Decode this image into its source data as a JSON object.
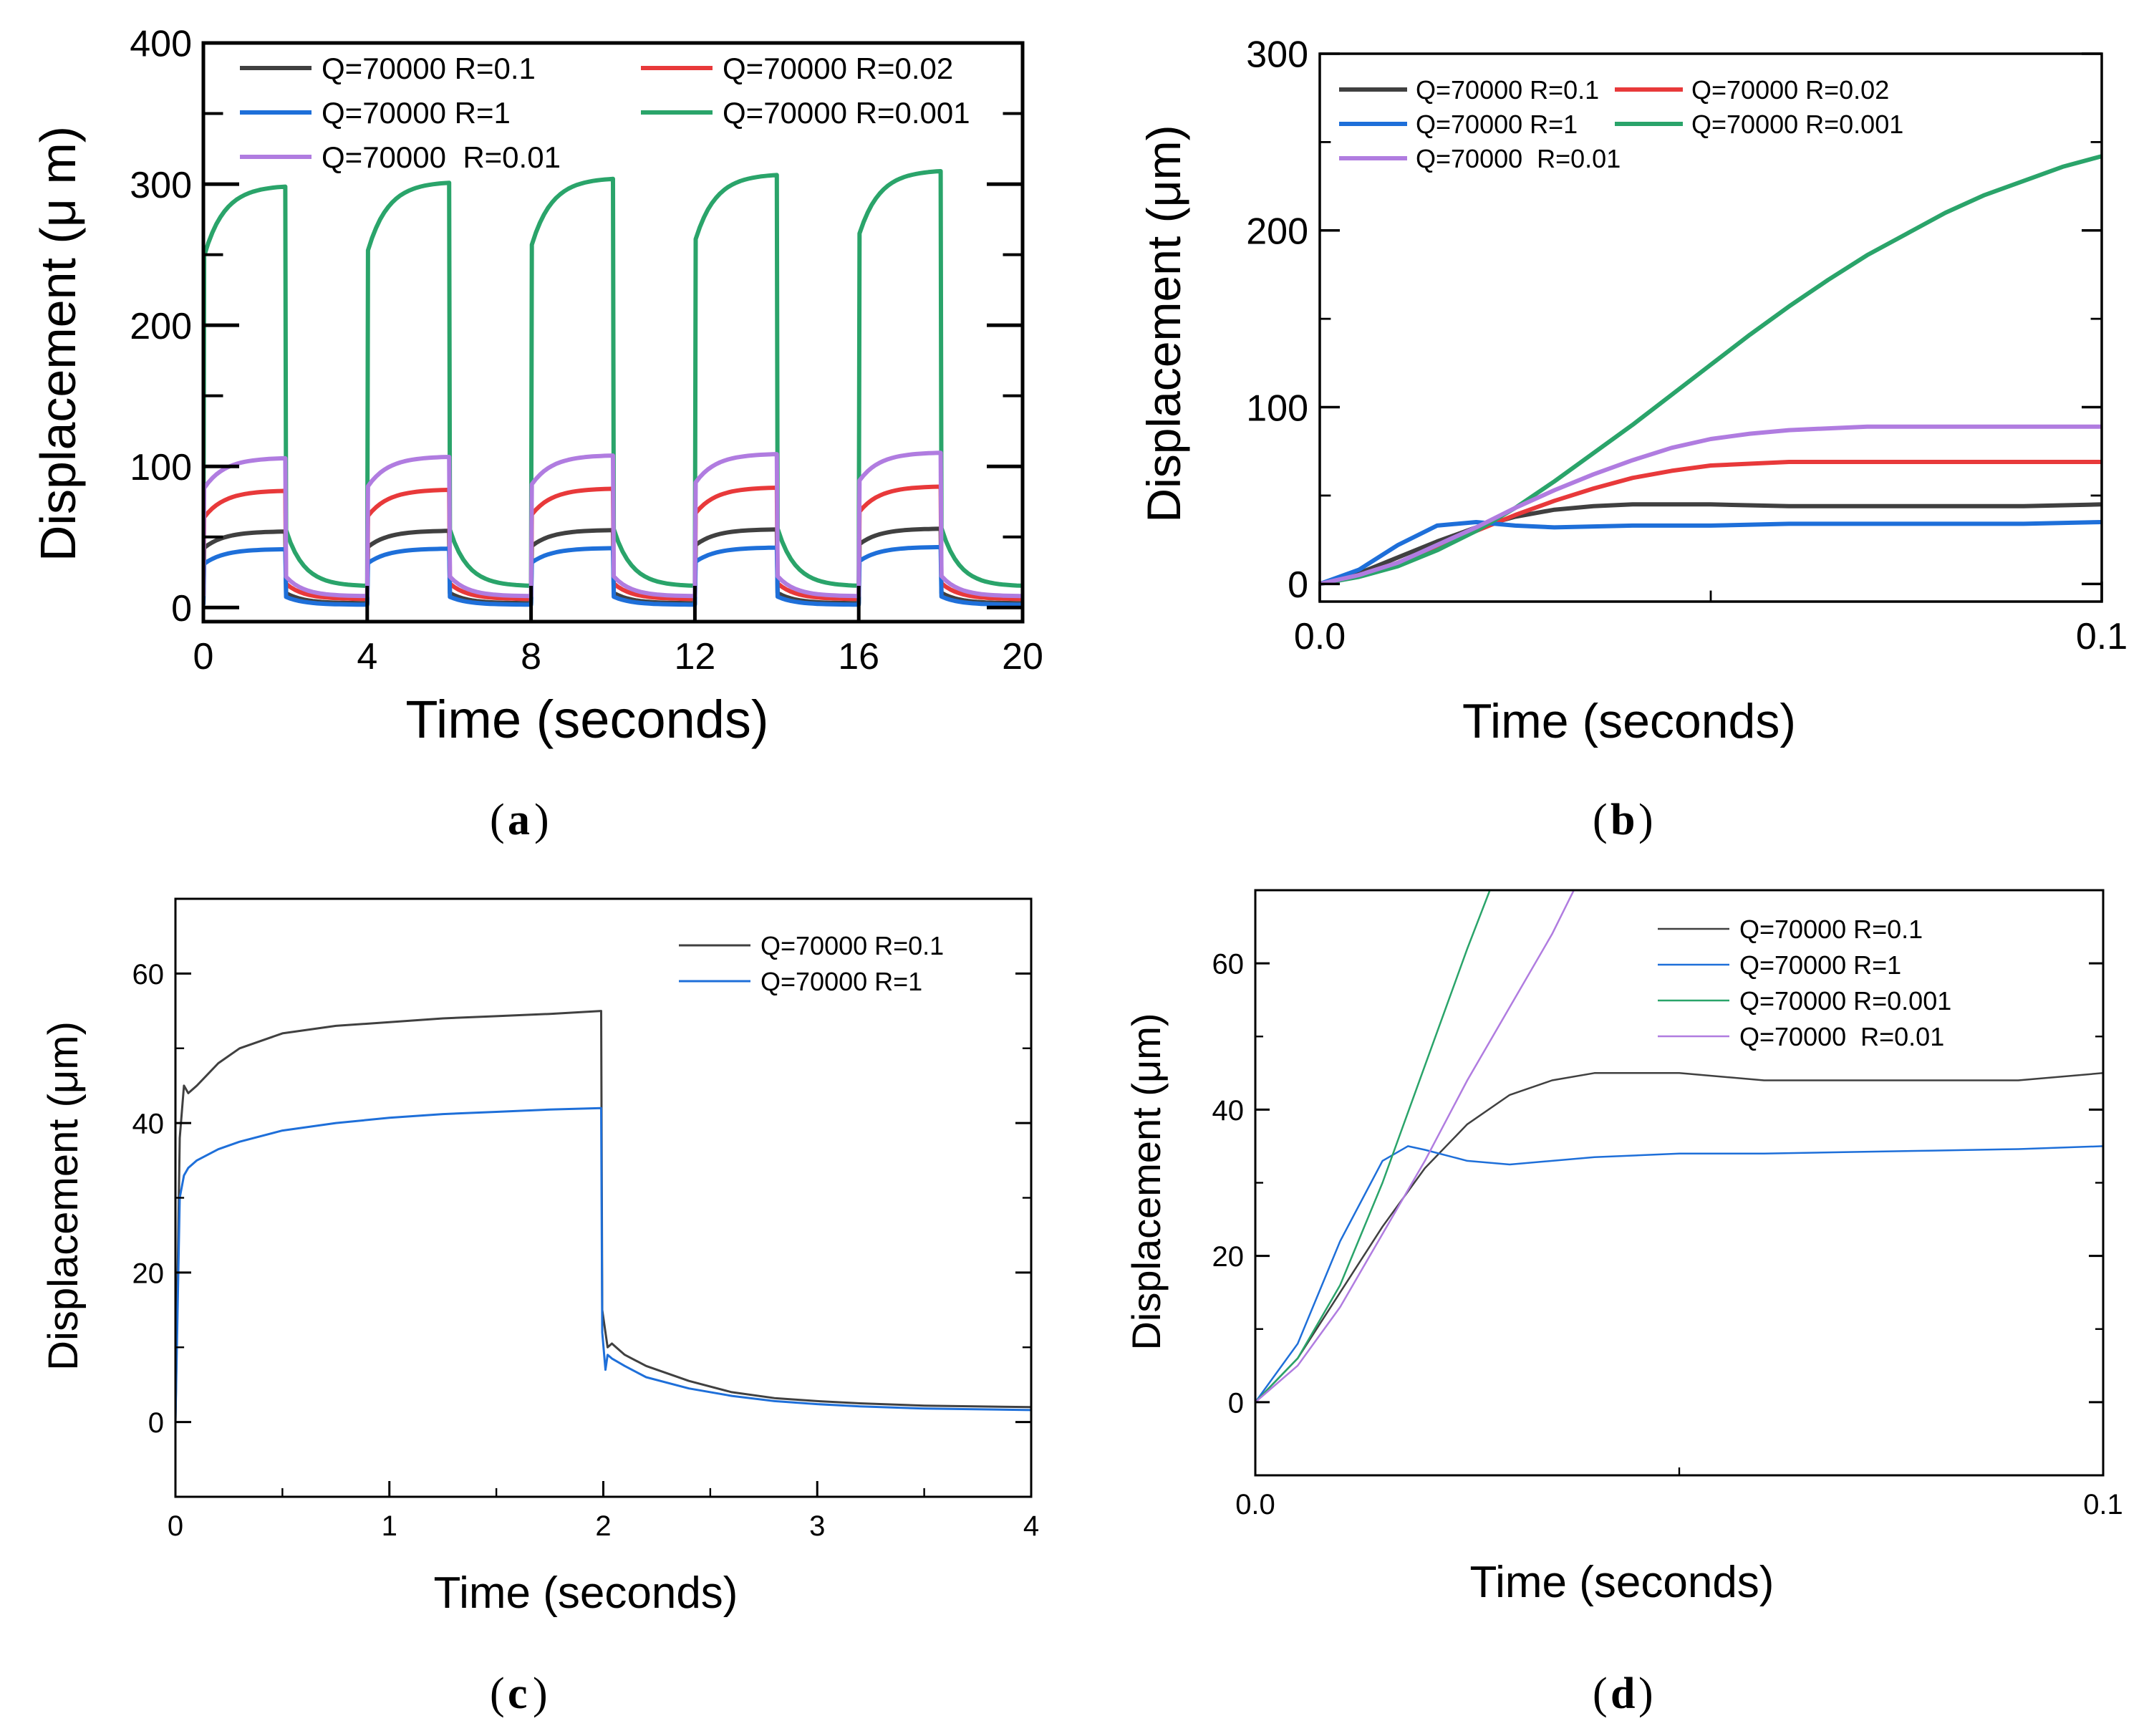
{
  "chart_data": [
    {
      "id": "a",
      "type": "line",
      "caption_letter": "a",
      "xlabel": "Time (seconds)",
      "ylabel": "Displacement (μ m)",
      "xlim": [
        0,
        20
      ],
      "ylim": [
        -10,
        400
      ],
      "xticks": [
        0,
        4,
        8,
        12,
        16,
        20
      ],
      "yticks": [
        0,
        100,
        200,
        300,
        400
      ],
      "legend_rows": [
        [
          "s0",
          "s1"
        ],
        [
          "s2",
          "s3"
        ],
        [
          "s4"
        ]
      ],
      "series": [
        {
          "id": "s0",
          "name": "Q=70000 R=0.1",
          "color": "#404040",
          "style": "cyclic",
          "peak": 56,
          "jump": 45,
          "floor": 3
        },
        {
          "id": "s1",
          "name": "Q=70000 R=0.02",
          "color": "#e8393a",
          "style": "cyclic",
          "peak": 86,
          "jump": 68,
          "floor": 6
        },
        {
          "id": "s2",
          "name": "Q=70000 R=1",
          "color": "#1e6fd9",
          "style": "cyclic",
          "peak": 43,
          "jump": 33,
          "floor": 2
        },
        {
          "id": "s3",
          "name": "Q=70000 R=0.001",
          "color": "#2aa46a",
          "style": "cyclic",
          "peak": 310,
          "jump": 265,
          "floor": 15
        },
        {
          "id": "s4",
          "name": "Q=70000  R=0.01",
          "color": "#b07ce0",
          "style": "cyclic",
          "peak": 110,
          "jump": 90,
          "floor": 8
        }
      ]
    },
    {
      "id": "b",
      "type": "line",
      "caption_letter": "b",
      "xlabel": "Time (seconds)",
      "ylabel": "Displacement (μm)",
      "xlim": [
        0,
        0.1
      ],
      "ylim": [
        -10,
        300
      ],
      "xticks": [
        0.0,
        0.1
      ],
      "xtick_labels": [
        "0.0",
        "0.1"
      ],
      "yticks": [
        0,
        100,
        200,
        300
      ],
      "legend_rows": [
        [
          "s0",
          "s1"
        ],
        [
          "s2",
          "s3"
        ],
        [
          "s4"
        ]
      ],
      "series": [
        {
          "id": "s0",
          "name": "Q=70000 R=0.1",
          "color": "#404040",
          "x": [
            0,
            0.005,
            0.01,
            0.015,
            0.02,
            0.025,
            0.03,
            0.035,
            0.04,
            0.05,
            0.06,
            0.07,
            0.08,
            0.09,
            0.1
          ],
          "y": [
            0,
            6,
            15,
            24,
            32,
            38,
            42,
            44,
            45,
            45,
            44,
            44,
            44,
            44,
            45
          ]
        },
        {
          "id": "s1",
          "name": "Q=70000 R=0.02",
          "color": "#e8393a",
          "x": [
            0,
            0.005,
            0.01,
            0.015,
            0.02,
            0.025,
            0.03,
            0.035,
            0.04,
            0.045,
            0.05,
            0.06,
            0.07,
            0.08,
            0.09,
            0.1
          ],
          "y": [
            0,
            5,
            12,
            21,
            30,
            39,
            47,
            54,
            60,
            64,
            67,
            69,
            69,
            69,
            69,
            69
          ]
        },
        {
          "id": "s2",
          "name": "Q=70000 R=1",
          "color": "#1e6fd9",
          "x": [
            0,
            0.005,
            0.01,
            0.015,
            0.02,
            0.025,
            0.03,
            0.04,
            0.05,
            0.06,
            0.07,
            0.08,
            0.09,
            0.1
          ],
          "y": [
            0,
            8,
            22,
            33,
            35,
            33,
            32,
            33,
            33,
            34,
            34,
            34,
            34,
            35
          ]
        },
        {
          "id": "s3",
          "name": "Q=70000 R=0.001",
          "color": "#2aa46a",
          "x": [
            0,
            0.005,
            0.01,
            0.015,
            0.02,
            0.025,
            0.03,
            0.035,
            0.04,
            0.045,
            0.05,
            0.055,
            0.06,
            0.065,
            0.07,
            0.075,
            0.08,
            0.085,
            0.09,
            0.095,
            0.1
          ],
          "y": [
            0,
            4,
            10,
            19,
            30,
            43,
            58,
            74,
            90,
            107,
            124,
            141,
            157,
            172,
            186,
            198,
            210,
            220,
            228,
            236,
            242
          ]
        },
        {
          "id": "s4",
          "name": "Q=70000  R=0.01",
          "color": "#b07ce0",
          "x": [
            0,
            0.005,
            0.01,
            0.015,
            0.02,
            0.025,
            0.03,
            0.035,
            0.04,
            0.045,
            0.05,
            0.055,
            0.06,
            0.07,
            0.08,
            0.09,
            0.1
          ],
          "y": [
            0,
            5,
            12,
            22,
            32,
            43,
            53,
            62,
            70,
            77,
            82,
            85,
            87,
            89,
            89,
            89,
            89
          ]
        }
      ]
    },
    {
      "id": "c",
      "type": "line",
      "caption_letter": "c",
      "xlabel": "Time (seconds)",
      "ylabel": "Displacement (μm)",
      "xlim": [
        0,
        4
      ],
      "ylim": [
        -10,
        70
      ],
      "xticks": [
        0,
        1,
        2,
        3,
        4
      ],
      "yticks": [
        0,
        20,
        40,
        60
      ],
      "legend_rows": [
        [
          "s0"
        ],
        [
          "s1"
        ]
      ],
      "series": [
        {
          "id": "s0",
          "name": "Q=70000 R=0.1",
          "color": "#404040",
          "x": [
            0,
            0.02,
            0.04,
            0.06,
            0.1,
            0.2,
            0.3,
            0.5,
            0.75,
            1.0,
            1.25,
            1.5,
            1.75,
            1.99,
            1.995,
            2.02,
            2.04,
            2.06,
            2.1,
            2.2,
            2.4,
            2.6,
            2.8,
            3.0,
            3.2,
            3.5,
            4.0
          ],
          "y": [
            0,
            38,
            45,
            44,
            45,
            48,
            50,
            52,
            53,
            53.5,
            54,
            54.3,
            54.6,
            55,
            15,
            10,
            10.5,
            10,
            9,
            7.5,
            5.5,
            4,
            3.2,
            2.8,
            2.5,
            2.2,
            2
          ]
        },
        {
          "id": "s1",
          "name": "Q=70000 R=1",
          "color": "#1e6fd9",
          "x": [
            0,
            0.02,
            0.04,
            0.06,
            0.1,
            0.2,
            0.3,
            0.5,
            0.75,
            1.0,
            1.25,
            1.5,
            1.75,
            1.99,
            1.995,
            2.01,
            2.02,
            2.04,
            2.1,
            2.2,
            2.4,
            2.6,
            2.8,
            3.0,
            3.2,
            3.5,
            4.0
          ],
          "y": [
            0,
            30,
            33,
            34,
            35,
            36.5,
            37.5,
            39,
            40,
            40.7,
            41.2,
            41.5,
            41.8,
            42,
            12,
            7,
            9,
            8.5,
            7.5,
            6,
            4.5,
            3.5,
            2.8,
            2.4,
            2.1,
            1.8,
            1.6
          ]
        }
      ]
    },
    {
      "id": "d",
      "type": "line",
      "caption_letter": "d",
      "xlabel": "Time (seconds)",
      "ylabel": "Displacement (μm)",
      "xlim": [
        0,
        0.1
      ],
      "ylim": [
        -10,
        70
      ],
      "xticks": [
        0.0,
        0.1
      ],
      "xtick_labels": [
        "0.0",
        "0.1"
      ],
      "yticks": [
        0,
        20,
        40,
        60
      ],
      "legend_rows": [
        [
          "s0"
        ],
        [
          "s1"
        ],
        [
          "s2"
        ],
        [
          "s3"
        ]
      ],
      "series": [
        {
          "id": "s0",
          "name": "Q=70000 R=0.1",
          "color": "#404040",
          "x": [
            0,
            0.005,
            0.01,
            0.015,
            0.02,
            0.025,
            0.03,
            0.035,
            0.04,
            0.05,
            0.06,
            0.07,
            0.08,
            0.09,
            0.1
          ],
          "y": [
            0,
            6,
            15,
            24,
            32,
            38,
            42,
            44,
            45,
            45,
            44,
            44,
            44,
            44,
            45
          ]
        },
        {
          "id": "s1",
          "name": "Q=70000 R=1",
          "color": "#1e6fd9",
          "x": [
            0,
            0.005,
            0.01,
            0.015,
            0.018,
            0.02,
            0.025,
            0.03,
            0.04,
            0.05,
            0.06,
            0.07,
            0.08,
            0.09,
            0.1
          ],
          "y": [
            0,
            8,
            22,
            33,
            35,
            34.5,
            33,
            32.5,
            33.5,
            34,
            34,
            34.2,
            34.4,
            34.6,
            35
          ]
        },
        {
          "id": "s2",
          "name": "Q=70000 R=0.001",
          "color": "#2aa46a",
          "x": [
            0,
            0.005,
            0.01,
            0.015,
            0.02,
            0.025,
            0.028
          ],
          "y": [
            0,
            6,
            16,
            30,
            46,
            62,
            71
          ]
        },
        {
          "id": "s3",
          "name": "Q=70000  R=0.01",
          "color": "#b07ce0",
          "x": [
            0,
            0.005,
            0.01,
            0.015,
            0.02,
            0.025,
            0.03,
            0.035,
            0.038
          ],
          "y": [
            0,
            5,
            13,
            23,
            33,
            44,
            54,
            64,
            71
          ]
        }
      ]
    }
  ]
}
